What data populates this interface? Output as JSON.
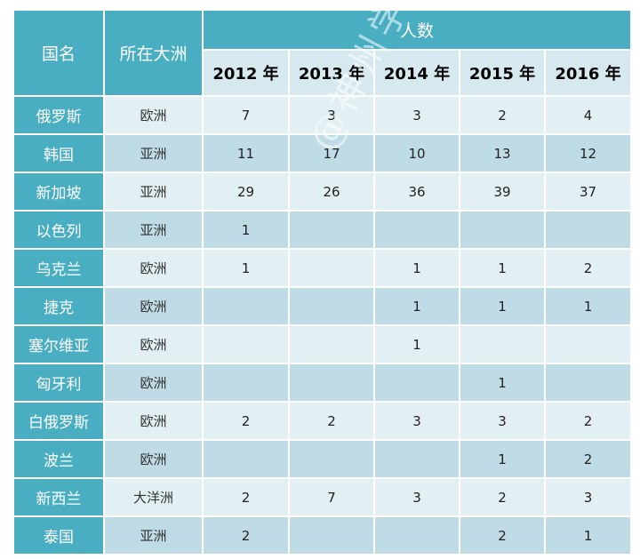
{
  "header": {
    "country": "国名",
    "continent": "所在大洲",
    "people": "人数",
    "years": [
      "2012 年",
      "2013 年",
      "2014 年",
      "2015 年",
      "2016 年"
    ]
  },
  "rows": [
    {
      "country": "俄罗斯",
      "continent": "欧洲",
      "values": [
        "7",
        "3",
        "3",
        "2",
        "4"
      ]
    },
    {
      "country": "韩国",
      "continent": "亚洲",
      "values": [
        "11",
        "17",
        "10",
        "13",
        "12"
      ]
    },
    {
      "country": "新加坡",
      "continent": "亚洲",
      "values": [
        "29",
        "26",
        "36",
        "39",
        "37"
      ]
    },
    {
      "country": "以色列",
      "continent": "亚洲",
      "values": [
        "1",
        "",
        "",
        "",
        ""
      ]
    },
    {
      "country": "乌克兰",
      "continent": "欧洲",
      "values": [
        "1",
        "",
        "1",
        "1",
        "2"
      ]
    },
    {
      "country": "捷克",
      "continent": "欧洲",
      "values": [
        "",
        "",
        "1",
        "1",
        "1"
      ]
    },
    {
      "country": "塞尔维亚",
      "continent": "欧洲",
      "values": [
        "",
        "",
        "1",
        "",
        ""
      ]
    },
    {
      "country": "匈牙利",
      "continent": "欧洲",
      "values": [
        "",
        "",
        "",
        "1",
        ""
      ]
    },
    {
      "country": "白俄罗斯",
      "continent": "欧洲",
      "values": [
        "2",
        "2",
        "3",
        "3",
        "2"
      ]
    },
    {
      "country": "波兰",
      "continent": "欧洲",
      "values": [
        "",
        "",
        "",
        "1",
        "2"
      ]
    },
    {
      "country": "新西兰",
      "continent": "大洋洲",
      "values": [
        "2",
        "7",
        "3",
        "2",
        "3"
      ]
    },
    {
      "country": "泰国",
      "continent": "亚洲",
      "values": [
        "2",
        "",
        "",
        "2",
        "1"
      ]
    }
  ],
  "watermark": "@神州学人",
  "colors": {
    "header": "#4aaec3",
    "row_light": "#e2eff3",
    "row_dark": "#bfdce6",
    "year_header": "#d6e9ef"
  }
}
